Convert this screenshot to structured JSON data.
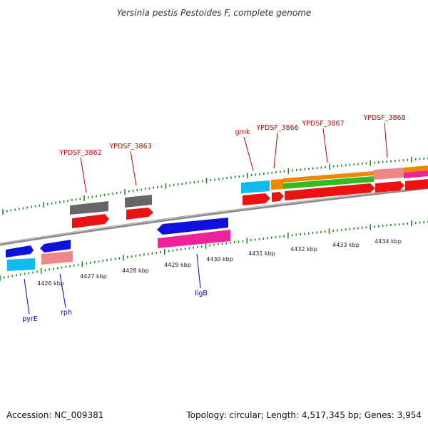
{
  "title": "Yersinia pestis Pestoides F, complete genome",
  "footer": {
    "accession": "Accession: NC_009381",
    "stats": "Topology: circular; Length: 4,517,345 bp; Genes: 3,954"
  },
  "colors": {
    "backbone": "#8a8a8a",
    "tick": "#1f8a1f",
    "label_red": "#cc0000",
    "label_blue": "#0000cc",
    "gray_feature": "#666666",
    "red_feature": "#ee1111",
    "blue_feature": "#1111dd",
    "cyan_feature": "#11bbee",
    "salmon_feature": "#ee8888",
    "magenta_feature": "#ee2299",
    "orange_feature": "#ee8800",
    "green_feature": "#33bb22"
  },
  "scale_labels": [
    "4426 kbp",
    "4427 kbp",
    "4428 kbp",
    "4429 kbp",
    "4430 kbp",
    "4431 kbp",
    "4432 kbp",
    "4433 kbp",
    "4434 kbp"
  ],
  "gene_labels": {
    "above": [
      "YPDSF_3862",
      "YPDSF_3863",
      "gmk",
      "YPDSF_3866",
      "YPDSF_3867",
      "YPDSF_3868"
    ],
    "below": [
      "pyrE",
      "rph",
      "ligB"
    ]
  }
}
